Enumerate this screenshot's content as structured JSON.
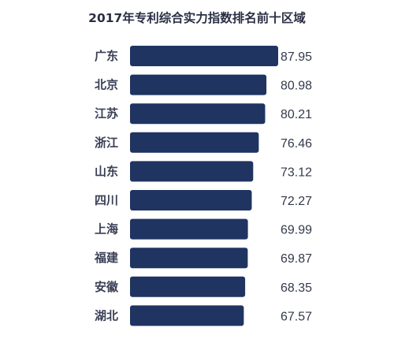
{
  "chart_data": {
    "type": "bar",
    "orientation": "horizontal",
    "title": "2017年专利综合实力指数排名前十区域",
    "categories": [
      "广东",
      "北京",
      "江苏",
      "浙江",
      "山东",
      "四川",
      "上海",
      "福建",
      "安徽",
      "湖北"
    ],
    "values": [
      87.95,
      80.98,
      80.21,
      76.46,
      73.12,
      72.27,
      69.99,
      69.87,
      68.35,
      67.57
    ],
    "value_labels": [
      "87.95",
      "80.98",
      "80.21",
      "76.46",
      "73.12",
      "72.27",
      "69.99",
      "69.87",
      "68.35",
      "67.57"
    ],
    "xlabel": "",
    "ylabel": "",
    "grid": false,
    "legend": "none",
    "bar_color": "#1f3461"
  }
}
